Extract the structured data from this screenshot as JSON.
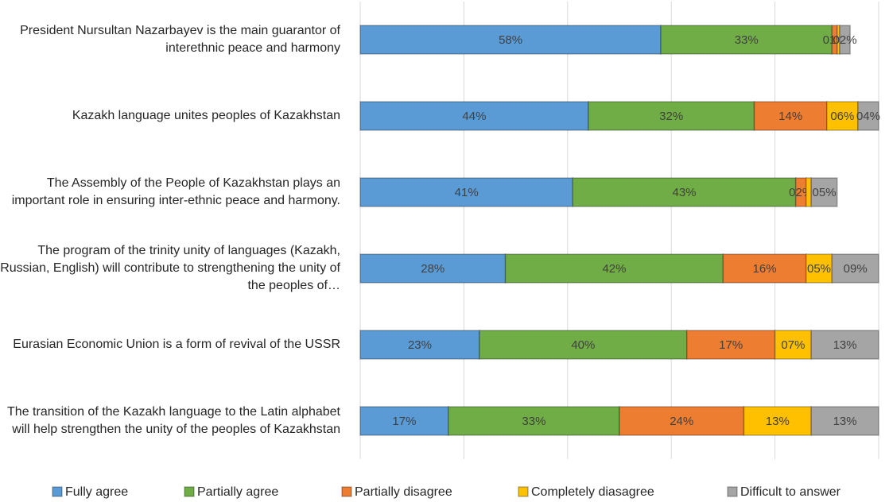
{
  "chart_data": {
    "type": "stacked-bar-horizontal",
    "categories": [
      "President Nursultan Nazarbayev is the main guarantor of interethnic peace and harmony",
      "Kazakh language unites peoples of Kazakhstan",
      "The Assembly of the People of Kazakhstan plays an important role in ensuring inter-ethnic peace and harmony.",
      "The program of the trinity unity of languages (Kazakh, Russian, English) will contribute to strengthening the unity of the peoples of…",
      "Eurasian Economic Union is a form of revival of the USSR",
      "The transition of the Kazakh language to the Latin alphabet will help strengthen the unity of the peoples of Kazakhstan"
    ],
    "series": [
      {
        "name": "Fully agree",
        "color": "#5b9bd5",
        "values": [
          58,
          44,
          41,
          28,
          23,
          17
        ],
        "value_labels": [
          "58%",
          "44%",
          "41%",
          "28%",
          "23%",
          "17%"
        ]
      },
      {
        "name": "Partially agree",
        "color": "#70ad47",
        "values": [
          33,
          32,
          43,
          42,
          40,
          33
        ],
        "value_labels": [
          "33%",
          "32%",
          "43%",
          "42%",
          "40%",
          "33%"
        ]
      },
      {
        "name": "Partially disagree",
        "color": "#ed7d31",
        "values": [
          1,
          14,
          2,
          16,
          17,
          24
        ],
        "value_labels": [
          "01%",
          "14%",
          "02%",
          "16%",
          "17%",
          "24%"
        ]
      },
      {
        "name": "Completely diasagree",
        "color": "#ffc000",
        "values": [
          0.5,
          6,
          1,
          5,
          7,
          13
        ],
        "value_labels": [
          null,
          "06%",
          null,
          "05%",
          "07%",
          "13%"
        ]
      },
      {
        "name": "Difficult to answer",
        "color": "#a5a5a5",
        "values": [
          2,
          4,
          5,
          9,
          13,
          13
        ],
        "value_labels": [
          "02%",
          "04%",
          "05%",
          "09%",
          "13%",
          "13%"
        ]
      }
    ],
    "xlim": [
      0,
      100
    ],
    "xticks": [
      0,
      20,
      40,
      60,
      80,
      100
    ],
    "grid": true,
    "legend": "bottom"
  }
}
